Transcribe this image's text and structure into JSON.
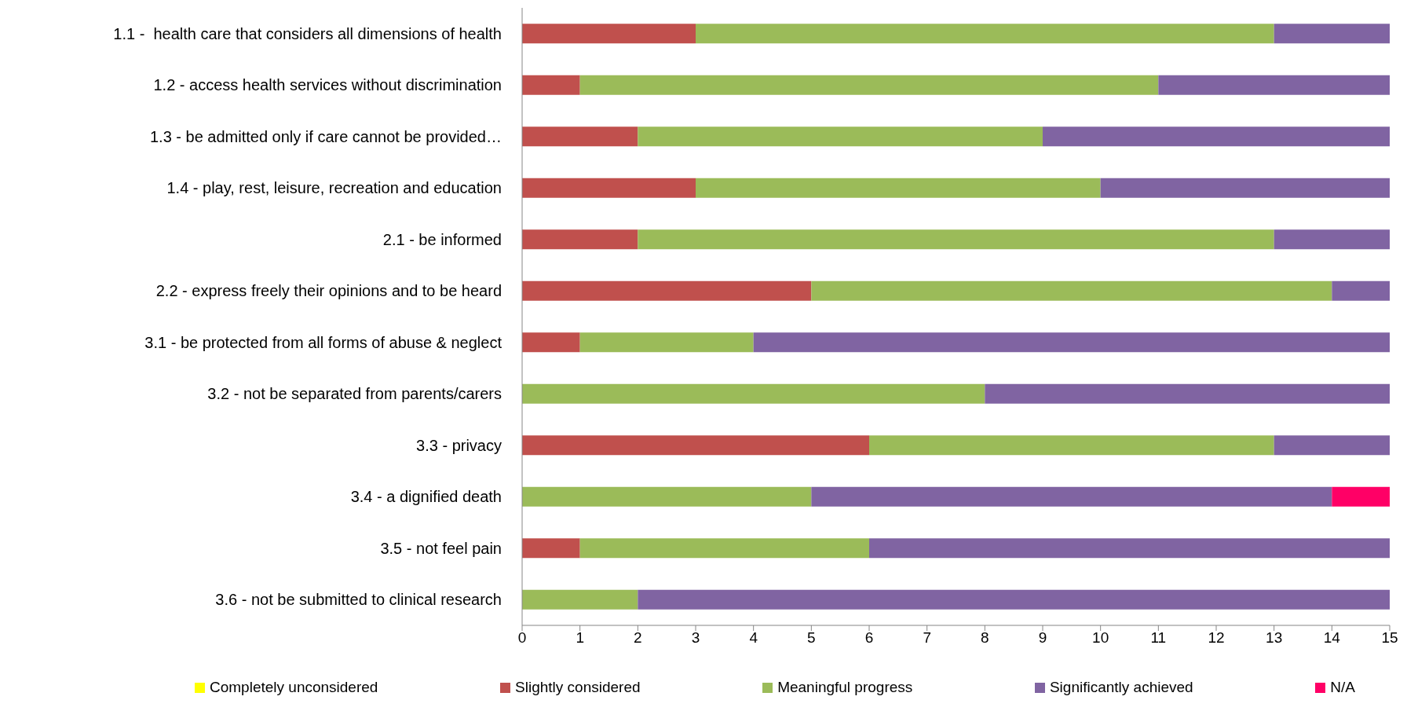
{
  "chart_data": {
    "type": "bar",
    "orientation": "horizontal",
    "stacked": true,
    "categories": [
      "1.1 -  health care that considers all dimensions of health",
      "1.2 - access health services without discrimination",
      "1.3 - be admitted only if care cannot be provided…",
      "1.4 - play, rest, leisure, recreation and education",
      "2.1 - be informed",
      "2.2 - express freely their opinions and to be heard",
      "3.1 - be protected from all forms of abuse & neglect",
      "3.2 - not be separated from parents/carers",
      "3.3 - privacy",
      "3.4 - a dignified death",
      "3.5 - not feel pain",
      "3.6 - not be submitted to clinical research"
    ],
    "series": [
      {
        "name": "Completely unconsidered",
        "color": "#ffff00",
        "values": [
          0,
          0,
          0,
          0,
          0,
          0,
          0,
          0,
          0,
          0,
          0,
          0
        ]
      },
      {
        "name": "Slightly considered",
        "color": "#c0504d",
        "values": [
          3,
          1,
          2,
          3,
          2,
          5,
          1,
          0,
          6,
          0,
          1,
          0
        ]
      },
      {
        "name": "Meaningful progress",
        "color": "#9bbb59",
        "values": [
          10,
          10,
          7,
          7,
          11,
          9,
          3,
          8,
          7,
          5,
          5,
          2
        ]
      },
      {
        "name": "Significantly achieved",
        "color": "#8064a2",
        "values": [
          2,
          4,
          6,
          5,
          2,
          1,
          11,
          7,
          2,
          9,
          9,
          13
        ]
      },
      {
        "name": "N/A",
        "color": "#ff0066",
        "values": [
          0,
          0,
          0,
          0,
          0,
          0,
          0,
          0,
          0,
          1,
          0,
          0
        ]
      }
    ],
    "xlim": [
      0,
      15
    ],
    "xticks": [
      0,
      1,
      2,
      3,
      4,
      5,
      6,
      7,
      8,
      9,
      10,
      11,
      12,
      13,
      14,
      15
    ],
    "legend": "bottom"
  }
}
